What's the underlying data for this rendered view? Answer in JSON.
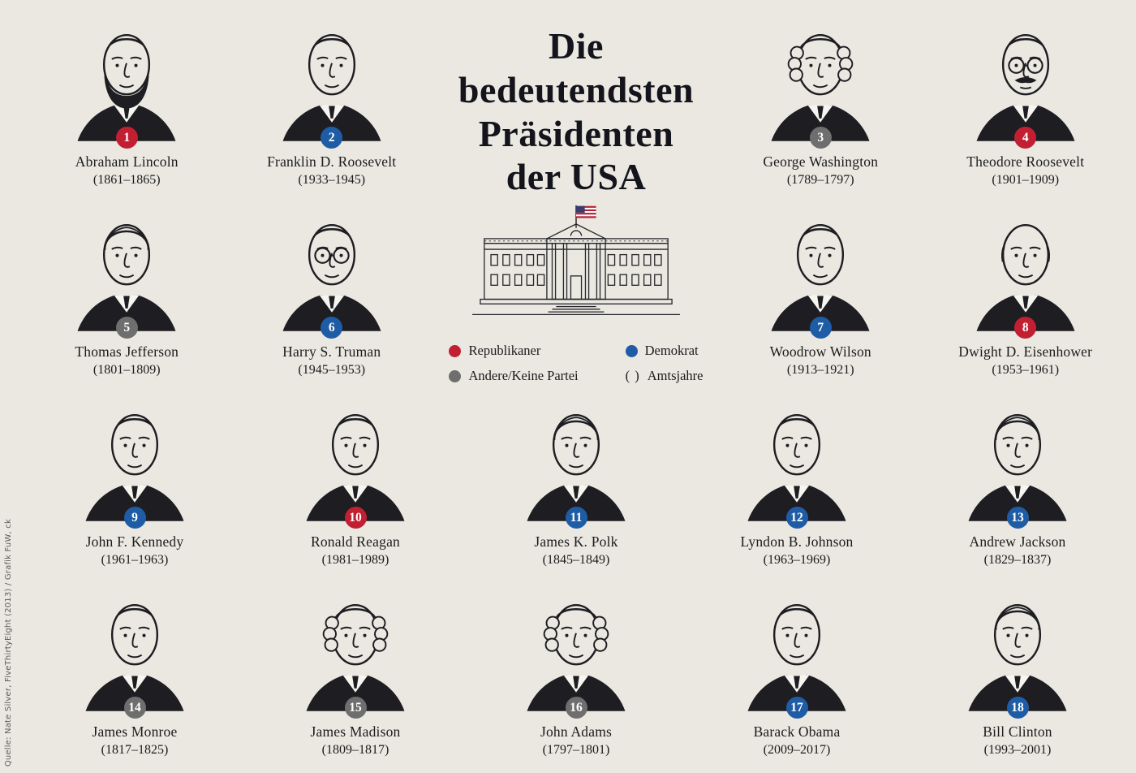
{
  "title": {
    "lines": [
      "Die bedeutendsten",
      "Präsidenten",
      "der USA"
    ],
    "full": "Die bedeutendsten Präsidenten der USA"
  },
  "colors": {
    "republican": "#c21f32",
    "democrat": "#1f5ca6",
    "other": "#6e6e6e",
    "background": "#eae8e1",
    "ink": "#1d1d22"
  },
  "legend": {
    "items": [
      {
        "label": "Republikaner",
        "marker": "dot",
        "color": "#c21f32"
      },
      {
        "label": "Andere/Keine Partei",
        "marker": "dot",
        "color": "#6e6e6e"
      },
      {
        "label": "Demokrat",
        "marker": "dot",
        "color": "#1f5ca6"
      },
      {
        "label": "Amtsjahre",
        "marker": "parens",
        "symbol": "( )"
      }
    ]
  },
  "source": "Quelle: Nate Silver, FiveThirtyEight (2013) / Grafik FuW, ck",
  "presidents": [
    {
      "rank": 1,
      "name": "Abraham Lincoln",
      "years": "(1861–1865)",
      "party": "republican",
      "portrait": {
        "hair": "dark",
        "beard": true
      }
    },
    {
      "rank": 2,
      "name": "Franklin D. Roosevelt",
      "years": "(1933–1945)",
      "party": "democrat",
      "portrait": {
        "hair": "dark"
      }
    },
    {
      "rank": 3,
      "name": "George Washington",
      "years": "(1789–1797)",
      "party": "other",
      "portrait": {
        "hair": "wig"
      }
    },
    {
      "rank": 4,
      "name": "Theodore Roosevelt",
      "years": "(1901–1909)",
      "party": "republican",
      "portrait": {
        "hair": "dark",
        "glasses": true,
        "mustache": true
      }
    },
    {
      "rank": 5,
      "name": "Thomas Jefferson",
      "years": "(1801–1809)",
      "party": "other",
      "portrait": {
        "hair": "gray"
      }
    },
    {
      "rank": 6,
      "name": "Harry S. Truman",
      "years": "(1945–1953)",
      "party": "democrat",
      "portrait": {
        "hair": "dark",
        "glasses": true
      }
    },
    {
      "rank": 7,
      "name": "Woodrow Wilson",
      "years": "(1913–1921)",
      "party": "democrat",
      "portrait": {
        "hair": "dark"
      }
    },
    {
      "rank": 8,
      "name": "Dwight D. Eisenhower",
      "years": "(1953–1961)",
      "party": "republican",
      "portrait": {
        "hair": "bald"
      }
    },
    {
      "rank": 9,
      "name": "John F. Kennedy",
      "years": "(1961–1963)",
      "party": "democrat",
      "portrait": {
        "hair": "dark"
      }
    },
    {
      "rank": 10,
      "name": "Ronald Reagan",
      "years": "(1981–1989)",
      "party": "republican",
      "portrait": {
        "hair": "dark"
      }
    },
    {
      "rank": 11,
      "name": "James K. Polk",
      "years": "(1845–1849)",
      "party": "democrat",
      "portrait": {
        "hair": "gray"
      }
    },
    {
      "rank": 12,
      "name": "Lyndon B. Johnson",
      "years": "(1963–1969)",
      "party": "democrat",
      "portrait": {
        "hair": "dark"
      }
    },
    {
      "rank": 13,
      "name": "Andrew Jackson",
      "years": "(1829–1837)",
      "party": "democrat",
      "portrait": {
        "hair": "gray"
      }
    },
    {
      "rank": 14,
      "name": "James Monroe",
      "years": "(1817–1825)",
      "party": "other",
      "portrait": {
        "hair": "dark"
      }
    },
    {
      "rank": 15,
      "name": "James Madison",
      "years": "(1809–1817)",
      "party": "other",
      "portrait": {
        "hair": "wig"
      }
    },
    {
      "rank": 16,
      "name": "John Adams",
      "years": "(1797–1801)",
      "party": "other",
      "portrait": {
        "hair": "wig"
      }
    },
    {
      "rank": 17,
      "name": "Barack Obama",
      "years": "(2009–2017)",
      "party": "democrat",
      "portrait": {
        "hair": "dark"
      }
    },
    {
      "rank": 18,
      "name": "Bill Clinton",
      "years": "(1993–2001)",
      "party": "democrat",
      "portrait": {
        "hair": "gray"
      }
    }
  ]
}
